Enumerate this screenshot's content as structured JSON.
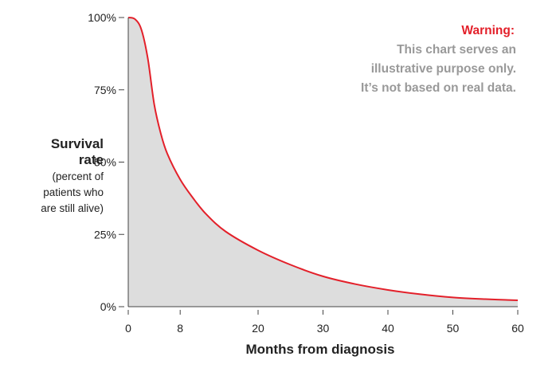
{
  "chart_data": {
    "type": "area",
    "xlabel": "Months from diagnosis",
    "ylabel": {
      "main_lines": [
        "Survival",
        "rate"
      ],
      "sub_lines": [
        "(percent of",
        "patients who",
        "are still alive)"
      ]
    },
    "xlim": [
      0,
      60
    ],
    "ylim": [
      0,
      100
    ],
    "x_ticks": [
      0,
      8,
      20,
      30,
      40,
      50,
      60
    ],
    "y_ticks": [
      {
        "value": 0,
        "label": "0%"
      },
      {
        "value": 25,
        "label": "25%"
      },
      {
        "value": 50,
        "label": "50%"
      },
      {
        "value": 75,
        "label": "75%"
      },
      {
        "value": 100,
        "label": "100%"
      }
    ],
    "grid": false,
    "annotation": {
      "title": "Warning:",
      "lines": [
        "This chart serves an",
        "illustrative purpose only.",
        "It’s not based on real data."
      ]
    },
    "series": [
      {
        "x": [
          0,
          1,
          2,
          3,
          4,
          5,
          6,
          8,
          10,
          12,
          15,
          20,
          25,
          30,
          35,
          40,
          45,
          50,
          55,
          60
        ],
        "values": [
          100,
          99.5,
          96,
          86,
          70,
          60,
          53,
          44,
          37.5,
          32,
          26,
          19.5,
          14.5,
          10.5,
          7.8,
          5.8,
          4.3,
          3.2,
          2.6,
          2.2
        ]
      }
    ],
    "colors": {
      "line": "#e3202a",
      "fill": "#dddddd",
      "warning_title": "#e3202a",
      "warning_text": "#999999",
      "axis": "#444444"
    }
  }
}
